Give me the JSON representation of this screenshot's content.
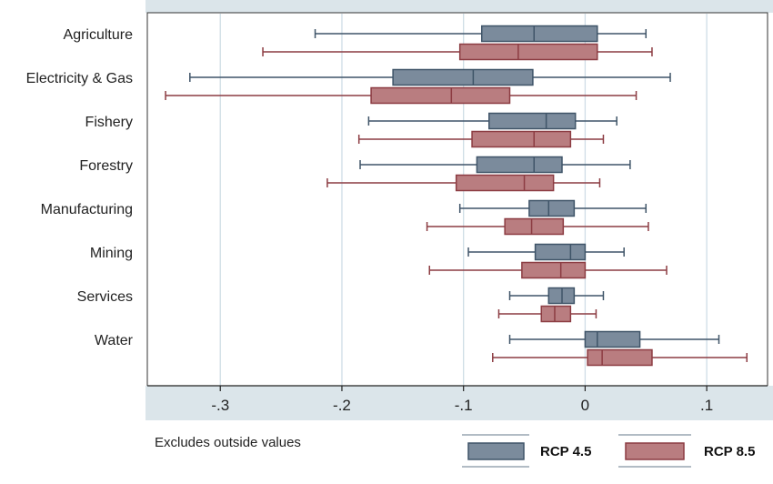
{
  "chart_data": {
    "type": "boxplot",
    "orientation": "horizontal",
    "categories": [
      "Agriculture",
      "Electricity & Gas",
      "Fishery",
      "Forestry",
      "Manufacturing",
      "Mining",
      "Services",
      "Water"
    ],
    "series": [
      {
        "name": "RCP 4.5",
        "color": "#7b8b9c",
        "stroke": "#3f5468",
        "boxes": [
          {
            "min": -0.222,
            "q1": -0.085,
            "median": -0.042,
            "q3": 0.01,
            "max": 0.05
          },
          {
            "min": -0.325,
            "q1": -0.158,
            "median": -0.092,
            "q3": -0.043,
            "max": 0.07
          },
          {
            "min": -0.178,
            "q1": -0.079,
            "median": -0.032,
            "q3": -0.008,
            "max": 0.026
          },
          {
            "min": -0.185,
            "q1": -0.089,
            "median": -0.042,
            "q3": -0.019,
            "max": 0.037
          },
          {
            "min": -0.103,
            "q1": -0.046,
            "median": -0.03,
            "q3": -0.009,
            "max": 0.05
          },
          {
            "min": -0.096,
            "q1": -0.041,
            "median": -0.012,
            "q3": 0.0,
            "max": 0.032
          },
          {
            "min": -0.062,
            "q1": -0.03,
            "median": -0.019,
            "q3": -0.009,
            "max": 0.015
          },
          {
            "min": -0.062,
            "q1": 0.0,
            "median": 0.01,
            "q3": 0.045,
            "max": 0.11
          }
        ]
      },
      {
        "name": "RCP 8.5",
        "color": "#b97d80",
        "stroke": "#8c3c42",
        "boxes": [
          {
            "min": -0.265,
            "q1": -0.103,
            "median": -0.055,
            "q3": 0.01,
            "max": 0.055
          },
          {
            "min": -0.345,
            "q1": -0.176,
            "median": -0.11,
            "q3": -0.062,
            "max": 0.042
          },
          {
            "min": -0.186,
            "q1": -0.093,
            "median": -0.042,
            "q3": -0.012,
            "max": 0.015
          },
          {
            "min": -0.212,
            "q1": -0.106,
            "median": -0.05,
            "q3": -0.026,
            "max": 0.012
          },
          {
            "min": -0.13,
            "q1": -0.066,
            "median": -0.044,
            "q3": -0.018,
            "max": 0.052
          },
          {
            "min": -0.128,
            "q1": -0.052,
            "median": -0.02,
            "q3": 0.0,
            "max": 0.067
          },
          {
            "min": -0.071,
            "q1": -0.036,
            "median": -0.025,
            "q3": -0.012,
            "max": 0.009
          },
          {
            "min": -0.076,
            "q1": 0.002,
            "median": 0.014,
            "q3": 0.055,
            "max": 0.133
          }
        ]
      }
    ],
    "xlim": [
      -0.36,
      0.15
    ],
    "xticks": [
      -0.3,
      -0.2,
      -0.1,
      0,
      0.1
    ],
    "xtick_labels": [
      "-.3",
      "-.2",
      "-.1",
      "0",
      ".1"
    ],
    "grid": "vertical",
    "note": "Excludes outside values",
    "legend_position": "bottom"
  }
}
